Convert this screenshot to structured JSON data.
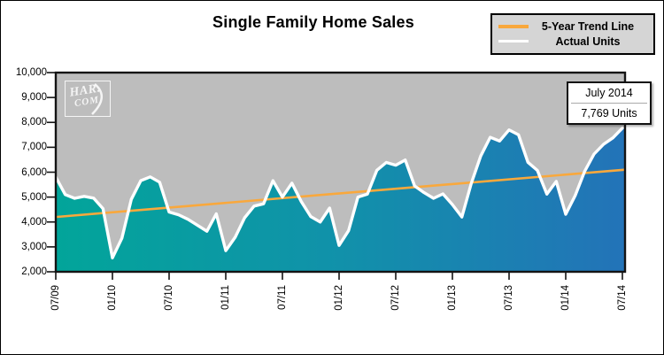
{
  "header": {
    "title": "Single Family Home Sales"
  },
  "legend": {
    "position": "top-right",
    "items": [
      {
        "label": "5-Year Trend Line",
        "swatch_color": "#F9A83C"
      },
      {
        "label": "Actual Units",
        "swatch_color": "#FFFFFF"
      }
    ]
  },
  "watermark": {
    "text_top": "HAR.",
    "text_bottom": "COM"
  },
  "callout": {
    "title": "July 2014",
    "value": "7,769 Units"
  },
  "chart_data": {
    "type": "line",
    "title": "Single Family Home Sales",
    "x_start": "07/09",
    "x_end": "07/14",
    "x_frequency": "monthly",
    "x_tick_labels": [
      "07/09",
      "01/10",
      "07/10",
      "01/11",
      "07/11",
      "01/12",
      "07/12",
      "01/13",
      "07/13",
      "01/14",
      "07/14"
    ],
    "y_ticks": [
      10000,
      9000,
      8000,
      7000,
      6000,
      5000,
      4000,
      3000,
      2000
    ],
    "y_tick_labels": [
      "10,000",
      "9,000",
      "8,000",
      "7,000",
      "6,000",
      "5,000",
      "4,000",
      "3,000",
      "2,000"
    ],
    "ylim": [
      2000,
      10000
    ],
    "grid": false,
    "legend_position": "top-right",
    "plot_bg": "#BDBDBD",
    "area_gradient": [
      "#02A59A",
      "#1191AA",
      "#2373B8"
    ],
    "series": [
      {
        "name": "Actual Units",
        "type": "area-line",
        "color": "#FFFFFF",
        "values": [
          5800,
          5100,
          4950,
          5030,
          4960,
          4540,
          2560,
          3350,
          4910,
          5660,
          5810,
          5600,
          4400,
          4290,
          4110,
          3870,
          3630,
          4330,
          2850,
          3390,
          4170,
          4640,
          4730,
          5660,
          5000,
          5560,
          4820,
          4220,
          4000,
          4560,
          3060,
          3650,
          5000,
          5120,
          6080,
          6390,
          6280,
          6490,
          5450,
          5180,
          4950,
          5130,
          4700,
          4200,
          5550,
          6650,
          7400,
          7250,
          7700,
          7500,
          6400,
          6070,
          5120,
          5630,
          4310,
          5060,
          6030,
          6730,
          7120,
          7380,
          7769
        ]
      },
      {
        "name": "5-Year Trend Line",
        "type": "linear-trend",
        "color": "#F9A83C",
        "start_value": 4200,
        "end_value": 6100
      }
    ],
    "annotation": {
      "label": "July 2014",
      "value": 7769,
      "text": "7,769 Units"
    }
  }
}
